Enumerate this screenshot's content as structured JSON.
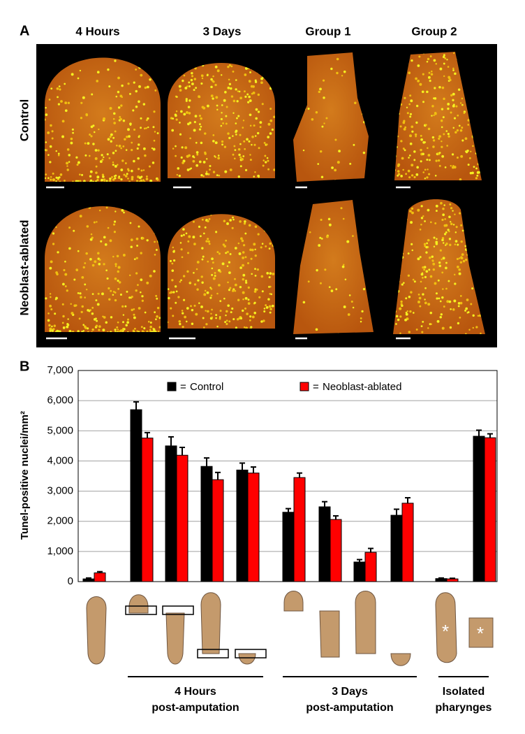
{
  "panel_a": {
    "label": "A",
    "columns": [
      "4 Hours",
      "3 Days",
      "Group 1",
      "Group 2"
    ],
    "rows": [
      "Control",
      "Neoblast-ablated"
    ]
  },
  "chart_data": {
    "type": "bar",
    "panel_label": "B",
    "y_label": "Tunel-positive nuclei/mm²",
    "categories": [
      null,
      null,
      null,
      null,
      null,
      null,
      null,
      null,
      null,
      null,
      null
    ],
    "legend_prefix": "=",
    "series": [
      {
        "name": "Control",
        "color": "#000000",
        "values": [
          90,
          5700,
          4500,
          3820,
          3700,
          2300,
          2480,
          650,
          2200,
          100,
          4820
        ],
        "errors": [
          30,
          260,
          300,
          280,
          230,
          120,
          170,
          80,
          200,
          20,
          200
        ]
      },
      {
        "name": "Neoblast-ablated",
        "color": "#ff0000",
        "values": [
          290,
          4760,
          4190,
          3380,
          3600,
          3450,
          2060,
          970,
          2600,
          90,
          4770
        ],
        "errors": [
          40,
          180,
          260,
          240,
          200,
          150,
          120,
          130,
          180,
          20,
          130
        ]
      }
    ],
    "ylim": [
      0,
      7000
    ],
    "yticks": [
      0,
      {
        "value": 1000,
        "label": "1,000"
      },
      {
        "value": 2000,
        "label": "2,000"
      },
      {
        "value": 3000,
        "label": "3,000"
      },
      {
        "value": 4000,
        "label": "4,000"
      },
      {
        "value": 5000,
        "label": "5,000"
      },
      {
        "value": 6000,
        "label": "6,000"
      },
      {
        "value": 7000,
        "label": "7,000"
      }
    ],
    "grid": true,
    "groups": [
      {
        "lines": [
          "4 Hours",
          "post-amputation"
        ]
      },
      {
        "lines": [
          "3 Days",
          "post-amputation"
        ]
      },
      {
        "lines": [
          "Isolated",
          "pharynges"
        ]
      }
    ]
  }
}
